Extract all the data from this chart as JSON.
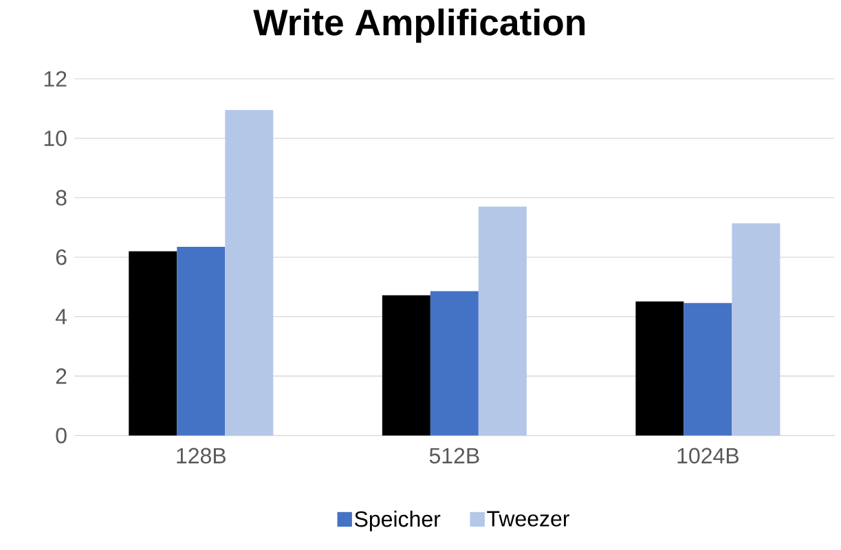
{
  "chart_data": {
    "type": "bar",
    "title": "Write Amplification",
    "categories": [
      "128B",
      "512B",
      "1024B"
    ],
    "series": [
      {
        "color": "#000000",
        "values": [
          6.2,
          4.72,
          4.51
        ]
      },
      {
        "name": "Speicher",
        "color": "#4472c4",
        "values": [
          6.35,
          4.86,
          4.46
        ]
      },
      {
        "name": "Tweezer",
        "color": "#b4c7e7",
        "values": [
          10.95,
          7.7,
          7.14
        ]
      }
    ],
    "ylim": [
      0,
      12
    ],
    "yticks": [
      0,
      2,
      4,
      6,
      8,
      10,
      12
    ],
    "grid": "y",
    "legend": "bottom"
  }
}
